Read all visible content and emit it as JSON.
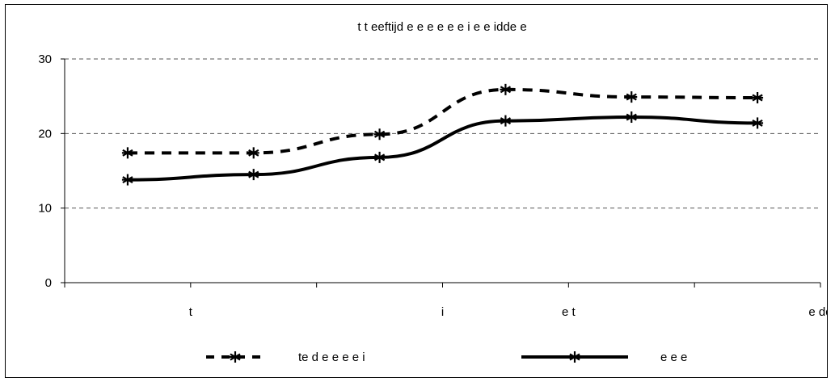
{
  "chart_data": {
    "type": "line",
    "title": "t t eeftijd e e e e e e i e e idde e",
    "categories": [
      "t",
      "",
      "i",
      "e t",
      "",
      "e dd"
    ],
    "yticks": [
      "0",
      "10",
      "20",
      "30"
    ],
    "ylim": [
      0,
      30
    ],
    "grid": true,
    "legend_position": "bottom",
    "series": [
      {
        "name": "te d e e e e i",
        "style": "dashed",
        "color": "#000000",
        "marker": "asterisk",
        "values": [
          17.4,
          17.4,
          19.9,
          25.9,
          24.9,
          24.8
        ]
      },
      {
        "name": "e e e",
        "style": "solid",
        "color": "#000000",
        "marker": "asterisk",
        "values": [
          13.8,
          14.5,
          16.8,
          21.7,
          22.2,
          21.4
        ]
      }
    ]
  }
}
